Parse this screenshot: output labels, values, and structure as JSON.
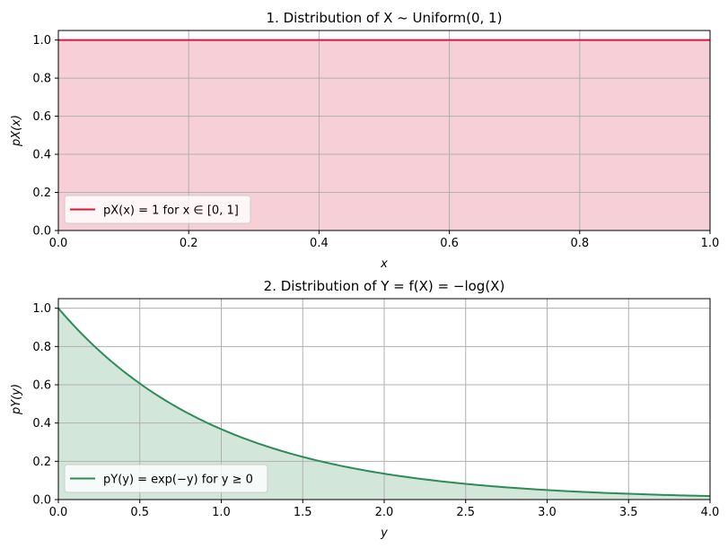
{
  "chart_data": [
    {
      "type": "area",
      "title": "1. Distribution of X ~ Uniform(0, 1)",
      "xlabel": "x",
      "ylabel": "pX(x)",
      "xlim": [
        0,
        1
      ],
      "ylim": [
        0,
        1.05
      ],
      "xticks": [
        0,
        0.2,
        0.4,
        0.6,
        0.8,
        1.0
      ],
      "xtick_labels": [
        "0.0",
        "0.2",
        "0.4",
        "0.6",
        "0.8",
        "1.0"
      ],
      "yticks": [
        0,
        0.2,
        0.4,
        0.6,
        0.8,
        1.0
      ],
      "ytick_labels": [
        "0.0",
        "0.2",
        "0.4",
        "0.6",
        "0.8",
        "1.0"
      ],
      "grid": true,
      "legend_position": "lower-left",
      "series": [
        {
          "name": "pX(x) = 1 for x ∈ [0, 1]",
          "color": "#dc143c",
          "fill": "#f7cfd7",
          "x": [
            0,
            0.2,
            0.4,
            0.6,
            0.8,
            1.0
          ],
          "y": [
            1,
            1,
            1,
            1,
            1,
            1
          ]
        }
      ]
    },
    {
      "type": "area",
      "title": "2. Distribution of Y = f(X) = −log(X)",
      "xlabel": "y",
      "ylabel": "pY(y)",
      "xlim": [
        0,
        4
      ],
      "ylim": [
        0,
        1.05
      ],
      "xticks": [
        0,
        0.5,
        1.0,
        1.5,
        2.0,
        2.5,
        3.0,
        3.5,
        4.0
      ],
      "xtick_labels": [
        "0.0",
        "0.5",
        "1.0",
        "1.5",
        "2.0",
        "2.5",
        "3.0",
        "3.5",
        "4.0"
      ],
      "yticks": [
        0,
        0.2,
        0.4,
        0.6,
        0.8,
        1.0
      ],
      "ytick_labels": [
        "0.0",
        "0.2",
        "0.4",
        "0.6",
        "0.8",
        "1.0"
      ],
      "grid": true,
      "legend_position": "lower-left",
      "series": [
        {
          "name": "pY(y) = exp(−y) for y ≥ 0",
          "color": "#2e8b57",
          "fill": "#d3e6da",
          "x": [
            0,
            0.25,
            0.5,
            0.75,
            1.0,
            1.25,
            1.5,
            1.75,
            2.0,
            2.25,
            2.5,
            2.75,
            3.0,
            3.25,
            3.5,
            3.75,
            4.0
          ],
          "y": [
            1.0,
            0.779,
            0.607,
            0.472,
            0.368,
            0.287,
            0.223,
            0.174,
            0.135,
            0.105,
            0.082,
            0.064,
            0.05,
            0.039,
            0.03,
            0.024,
            0.018
          ]
        }
      ]
    }
  ]
}
